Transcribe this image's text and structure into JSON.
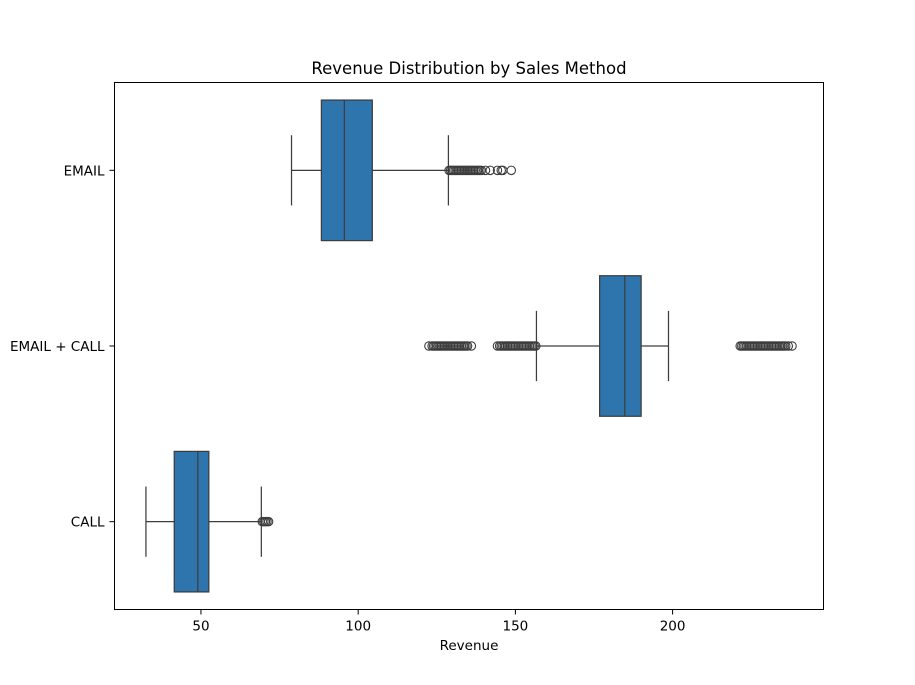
{
  "chart_data": {
    "type": "box",
    "title": "Revenue Distribution by Sales Method",
    "xlabel": "Revenue",
    "ylabel": "",
    "orientation": "horizontal",
    "xlim": [
      22.5,
      248
    ],
    "xticks": [
      50,
      100,
      150,
      200
    ],
    "categories": [
      "EMAIL",
      "EMAIL + CALL",
      "CALL"
    ],
    "grid": false,
    "box_color": "#2e75ae",
    "series": [
      {
        "category": "EMAIL",
        "whisker_low": 78.8,
        "q1": 88.3,
        "median": 95.6,
        "q3": 104.5,
        "whisker_high": 128.7,
        "outlier_range": [
          128.9,
          139.2
        ],
        "outliers": [
          140.5,
          142.0,
          144.3,
          145.5,
          146.0,
          148.7
        ]
      },
      {
        "category": "EMAIL + CALL",
        "whisker_low": 156.7,
        "q1": 176.8,
        "median": 184.8,
        "q3": 190.0,
        "whisker_high": 198.7,
        "outlier_ranges": [
          [
            123.5,
            134.8
          ],
          [
            145.0,
            156.5
          ],
          [
            221.5,
            236.0
          ]
        ],
        "outliers": [
          122.5,
          136.0,
          144.3,
          236.8,
          238.0
        ]
      },
      {
        "category": "CALL",
        "whisker_low": 32.5,
        "q1": 41.5,
        "median": 49.0,
        "q3": 52.5,
        "whisker_high": 69.2,
        "outlier_range": [
          69.5,
          71.5
        ],
        "outliers": []
      }
    ]
  }
}
